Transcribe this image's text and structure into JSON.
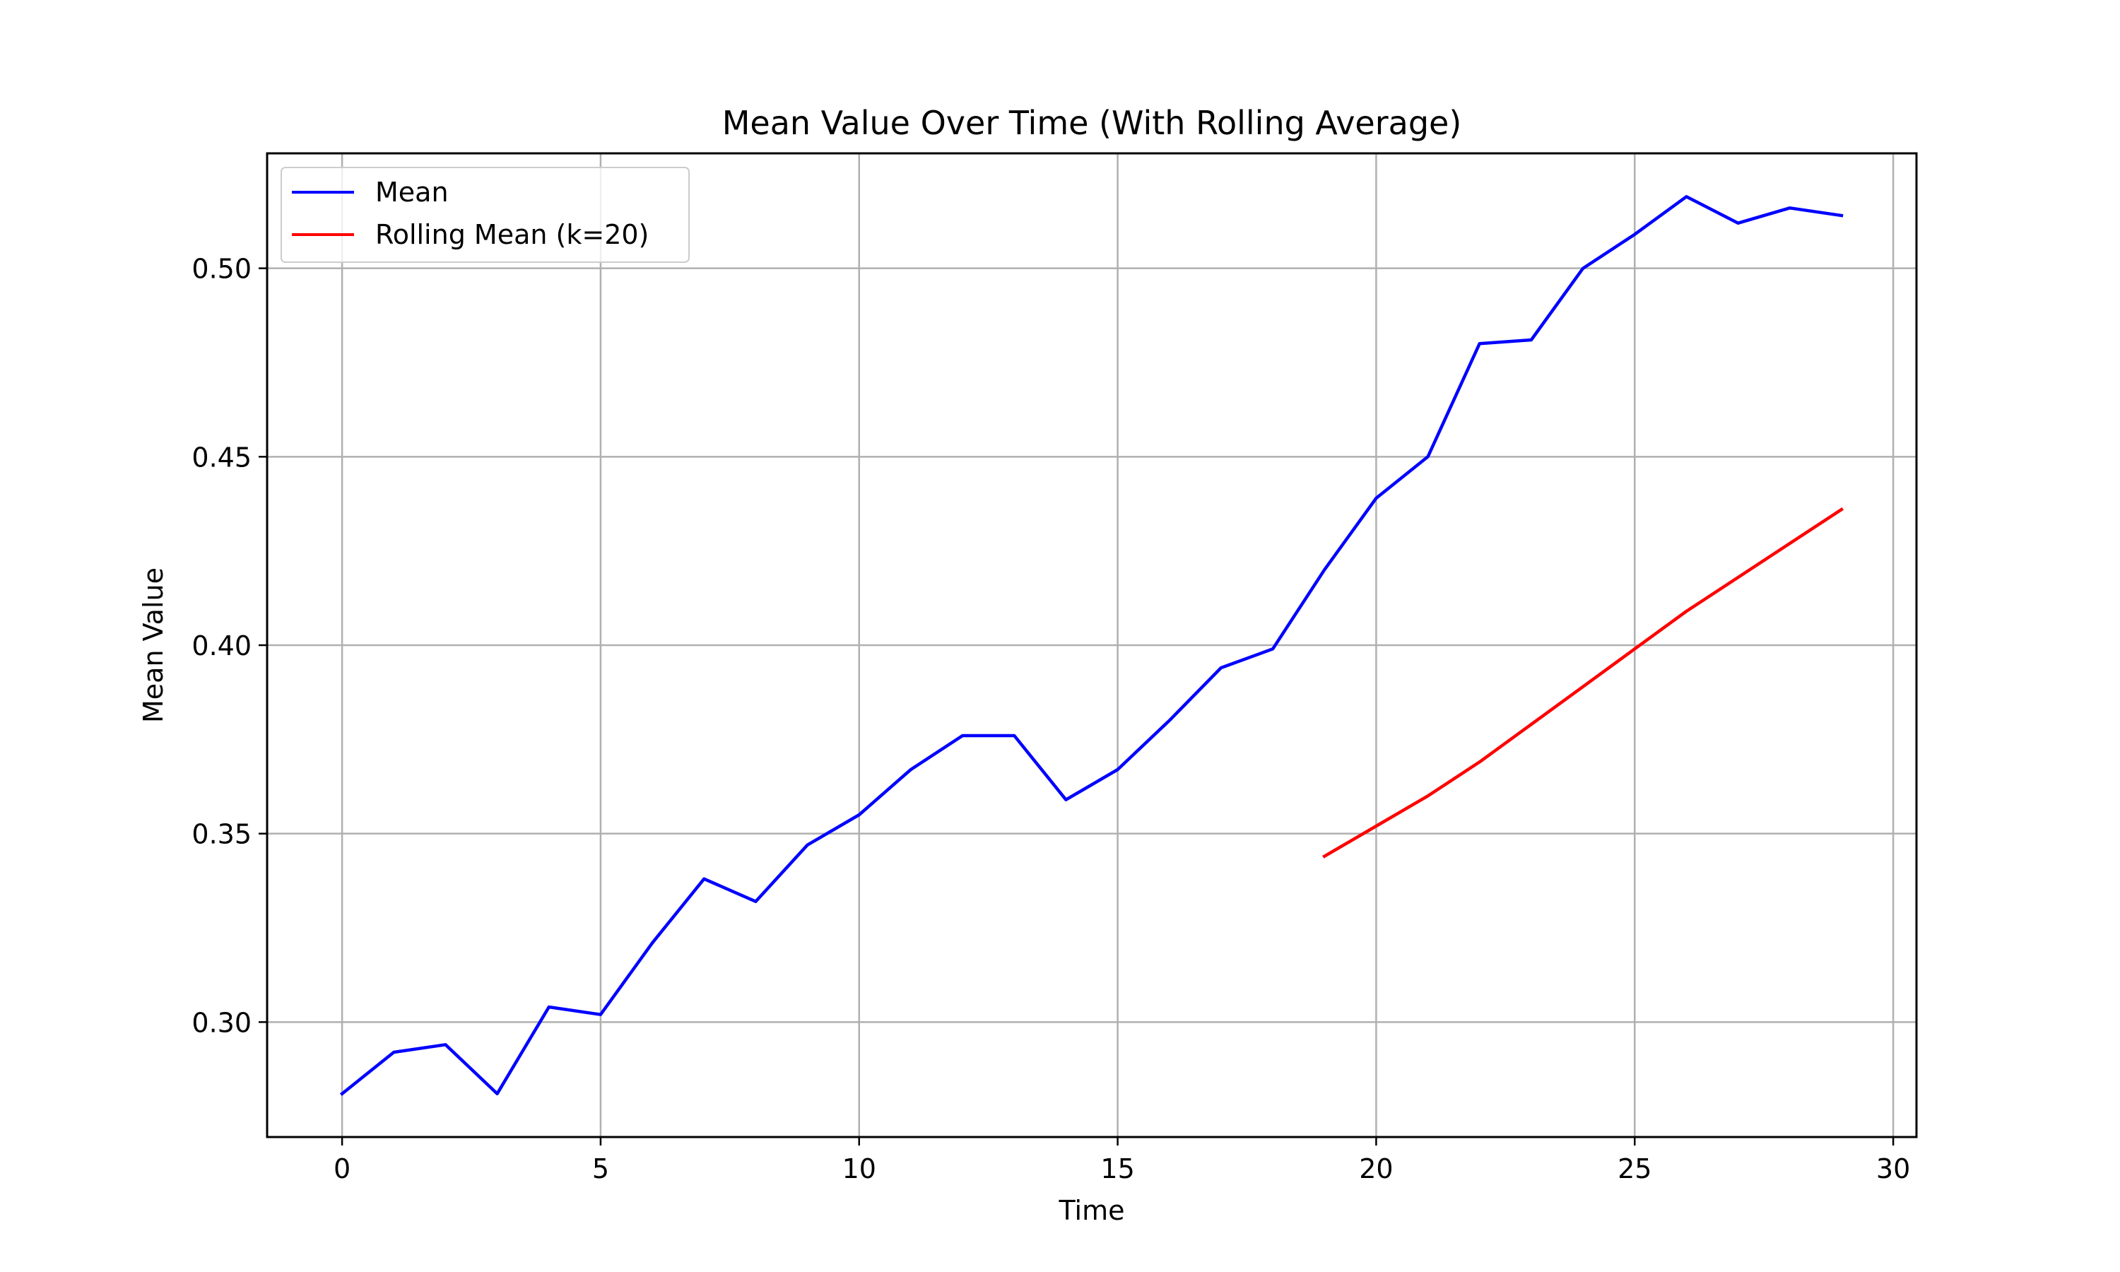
{
  "chart_data": {
    "type": "line",
    "title": "Mean Value Over Time (With Rolling Average)",
    "xlabel": "Time",
    "ylabel": "Mean Value",
    "xlim": [
      -1.45,
      30.45
    ],
    "ylim": [
      0.2695,
      0.5305
    ],
    "xticks": [
      0,
      5,
      10,
      15,
      20,
      25,
      30
    ],
    "yticks": [
      0.3,
      0.35,
      0.4,
      0.45,
      0.5
    ],
    "xtick_labels": [
      "0",
      "5",
      "10",
      "15",
      "20",
      "25",
      "30"
    ],
    "ytick_labels": [
      "0.30",
      "0.35",
      "0.40",
      "0.45",
      "0.50"
    ],
    "grid": true,
    "legend": {
      "placement": "upper-left"
    },
    "series": [
      {
        "name": "Mean",
        "color": "#0000ff",
        "x": [
          0,
          1,
          2,
          3,
          4,
          5,
          6,
          7,
          8,
          9,
          10,
          11,
          12,
          13,
          14,
          15,
          16,
          17,
          18,
          19,
          20,
          21,
          22,
          23,
          24,
          25,
          26,
          27,
          28,
          29
        ],
        "values": [
          0.281,
          0.292,
          0.294,
          0.281,
          0.304,
          0.302,
          0.321,
          0.338,
          0.332,
          0.347,
          0.355,
          0.367,
          0.376,
          0.376,
          0.359,
          0.367,
          0.38,
          0.394,
          0.399,
          0.42,
          0.439,
          0.45,
          0.48,
          0.481,
          0.5,
          0.509,
          0.519,
          0.512,
          0.516,
          0.514
        ]
      },
      {
        "name": "Rolling Mean (k=20)",
        "color": "#ff0000",
        "x": [
          19,
          20,
          21,
          22,
          23,
          24,
          25,
          26,
          27,
          28,
          29
        ],
        "values": [
          0.344,
          0.352,
          0.36,
          0.369,
          0.379,
          0.389,
          0.399,
          0.409,
          0.418,
          0.427,
          0.436
        ]
      }
    ]
  }
}
